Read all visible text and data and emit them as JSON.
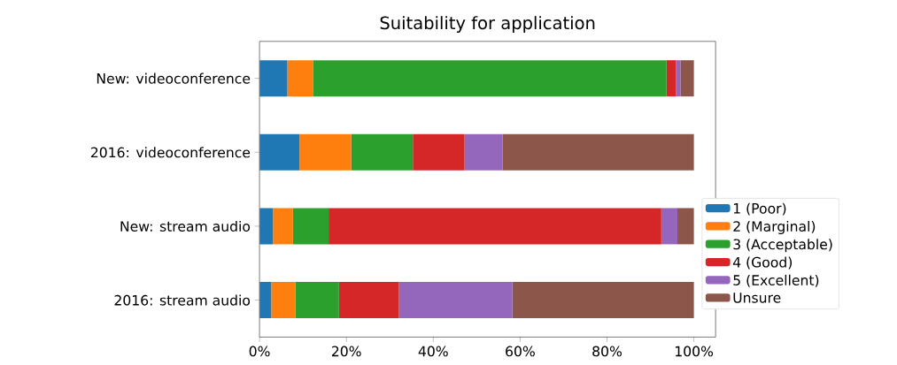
{
  "chart_data": {
    "type": "bar",
    "orientation": "horizontal",
    "stacked": true,
    "title": "Suitability for application",
    "categories": [
      "New: videoconference",
      "2016: videoconference",
      "New: stream audio",
      "2016: stream audio"
    ],
    "series": [
      {
        "name": "1 (Poor)",
        "color": "#1f77b4",
        "values": [
          6.4,
          9.2,
          3.1,
          2.7
        ]
      },
      {
        "name": "2 (Marginal)",
        "color": "#ff7f0e",
        "values": [
          6.0,
          11.9,
          4.6,
          5.6
        ]
      },
      {
        "name": "3 (Acceptable)",
        "color": "#2ca02c",
        "values": [
          81.3,
          14.2,
          8.2,
          10.0
        ]
      },
      {
        "name": "4 (Good)",
        "color": "#d62728",
        "values": [
          2.2,
          11.9,
          76.6,
          13.8
        ]
      },
      {
        "name": "5 (Excellent)",
        "color": "#9467bd",
        "values": [
          1.0,
          8.8,
          3.7,
          26.1
        ]
      },
      {
        "name": "Unsure",
        "color": "#8c564b",
        "values": [
          3.1,
          44.0,
          3.8,
          41.8
        ]
      }
    ],
    "xlim": [
      0,
      105
    ],
    "xticks": [
      {
        "value": 0,
        "label": "0%"
      },
      {
        "value": 20,
        "label": "20%"
      },
      {
        "value": 40,
        "label": "40%"
      },
      {
        "value": 60,
        "label": "60%"
      },
      {
        "value": 80,
        "label": "80%"
      },
      {
        "value": 100,
        "label": "100%"
      }
    ],
    "grid": false,
    "legend": "right"
  }
}
